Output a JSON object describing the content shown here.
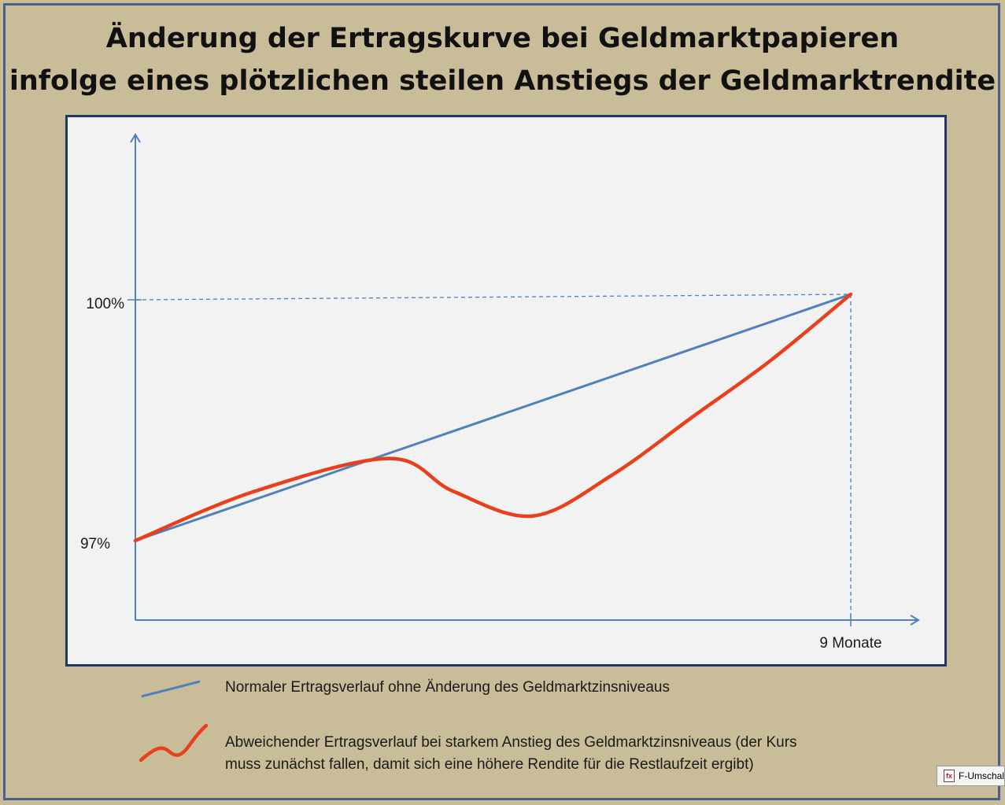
{
  "title": {
    "line1": "Änderung der Ertragskurve bei Geldmarktpapieren",
    "line2": "infolge eines plötzlichen steilen Anstiegs der Geldmarktrendite"
  },
  "chart_data": {
    "type": "line",
    "y_ticks": [
      "100%",
      "97%"
    ],
    "x_ticks": [
      "9 Monate"
    ],
    "grid": false,
    "legend_position": "bottom",
    "colors": {
      "normal": "#4f81bd",
      "abweichend": "#e8401c",
      "axis": "#4f81bd"
    },
    "series": [
      {
        "name": "Normaler Ertragsverlauf ohne Änderung des Geldmarktzinsniveaus",
        "x": [
          0,
          9
        ],
        "y": [
          97,
          100
        ]
      },
      {
        "name": "Abweichender Ertragsverlauf bei starkem Anstieg des Geldmarktzinsniveaus (der Kurs muss zunächst fallen, damit sich eine höhere Rendite für die Restlaufzeit ergibt)",
        "x": [
          0,
          1.5,
          3.2,
          4.0,
          5.0,
          6.0,
          7.0,
          8.0,
          9
        ],
        "y": [
          97,
          97.6,
          98.0,
          97.6,
          97.3,
          97.8,
          98.5,
          99.2,
          100
        ]
      }
    ]
  },
  "legend": {
    "normal_label": "Normaler Ertragsverlauf ohne Änderung des Geldmarktzinsniveaus",
    "abweichend_line1": "Abweichender Ertragsverlauf bei starkem Anstieg des Geldmarktzinsniveaus (der Kurs",
    "abweichend_line2": "muss zunächst fallen, damit sich eine höhere Rendite für die Restlaufzeit ergibt)"
  },
  "badge": {
    "icon": "formula-icon",
    "label": "F-Umschal"
  }
}
